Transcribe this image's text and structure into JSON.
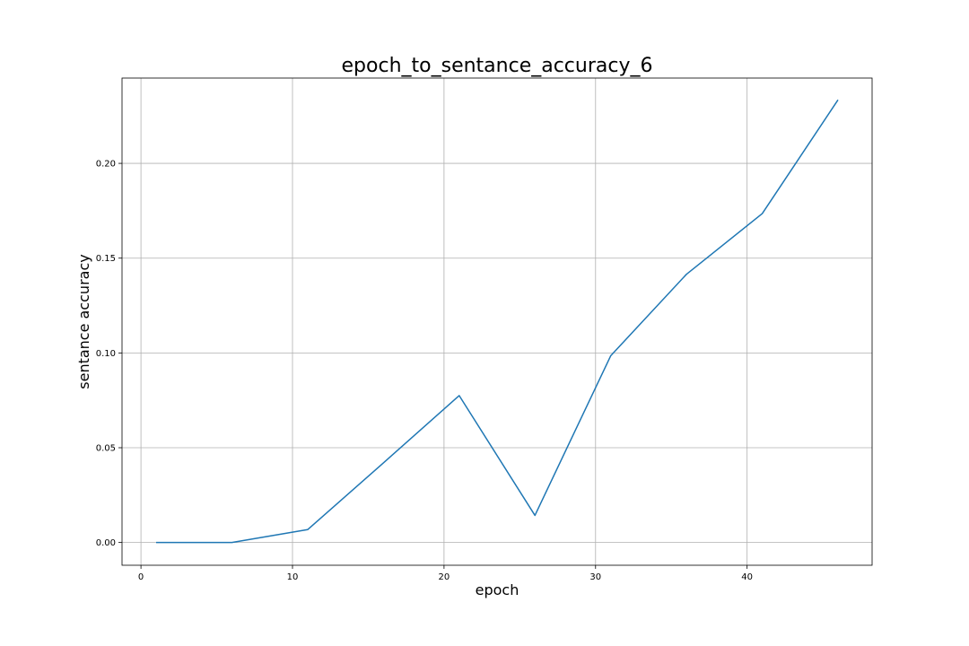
{
  "chart_data": {
    "type": "line",
    "title": "epoch_to_sentance_accuracy_6",
    "xlabel": "epoch",
    "ylabel": "sentance accuracy",
    "xlim": [
      -1.25,
      48.25
    ],
    "ylim": [
      -0.012,
      0.245
    ],
    "xticks": [
      0,
      10,
      20,
      30,
      40
    ],
    "xtick_labels": [
      "0",
      "10",
      "20",
      "30",
      "40"
    ],
    "yticks": [
      0.0,
      0.05,
      0.1,
      0.15,
      0.2
    ],
    "ytick_labels": [
      "0.00",
      "0.05",
      "0.10",
      "0.15",
      "0.20"
    ],
    "grid": true,
    "series": [
      {
        "color": "#1f77b4",
        "x": [
          1,
          6,
          11,
          16,
          21,
          26,
          31,
          36,
          41,
          46
        ],
        "y": [
          0.0,
          0.0,
          0.0068,
          0.042,
          0.0775,
          0.0143,
          0.0985,
          0.1415,
          0.1735,
          0.2335
        ]
      }
    ]
  }
}
